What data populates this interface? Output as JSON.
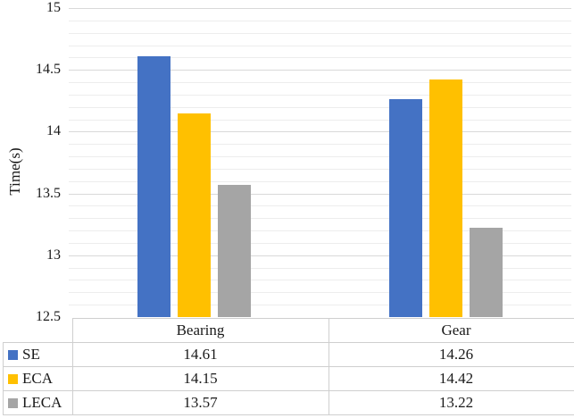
{
  "chart_data": {
    "type": "bar",
    "title": "",
    "xlabel": "",
    "ylabel": "Time(s)",
    "categories": [
      "Bearing",
      "Gear"
    ],
    "series": [
      {
        "name": "SE",
        "color": "#4472C4",
        "values": [
          14.61,
          14.26
        ]
      },
      {
        "name": "ECA",
        "color": "#FFC000",
        "values": [
          14.15,
          14.42
        ]
      },
      {
        "name": "LECA",
        "color": "#A5A5A5",
        "values": [
          13.57,
          13.22
        ]
      }
    ],
    "ylim": [
      12.5,
      15
    ],
    "y_major_ticks": [
      15,
      14.5,
      14,
      13.5,
      13,
      12.5
    ],
    "y_minor_unit": 0.1,
    "grid": true,
    "legend_position": "data-table-left-column"
  },
  "colors": {
    "gridline_major": "#d9d9d9",
    "gridline_minor": "#ededed",
    "table_border": "#cfcfcf",
    "text": "#1a1a1a"
  }
}
